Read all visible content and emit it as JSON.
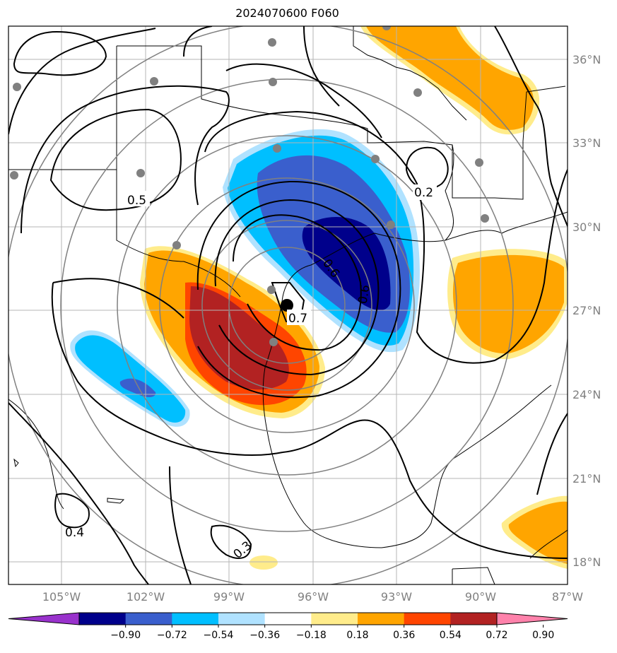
{
  "title": "2024070600 F060",
  "map": {
    "lon_labels": [
      "105°W",
      "102°W",
      "99°W",
      "96°W",
      "93°W",
      "90°W",
      "87°W"
    ],
    "lat_labels": [
      "36°N",
      "33°N",
      "30°N",
      "27°N",
      "24°N",
      "21°N",
      "18°N"
    ],
    "contour_labels": [
      "0.5",
      "0.2",
      "0.6",
      "0.6",
      "0.7",
      "0.4",
      "0.3"
    ],
    "storm_center_marker": "black-dot"
  },
  "colorbar": {
    "ticks": [
      "−0.90",
      "−0.72",
      "−0.54",
      "−0.36",
      "−0.18",
      "0.18",
      "0.36",
      "0.54",
      "0.72",
      "0.90"
    ],
    "colors": [
      "#9932cc",
      "#00008b",
      "#3a5fcd",
      "#00bfff",
      "#b0e2ff",
      "#ffffff",
      "#ffec8b",
      "#ffa500",
      "#ff4500",
      "#b22222",
      "#ff82ab"
    ]
  }
}
